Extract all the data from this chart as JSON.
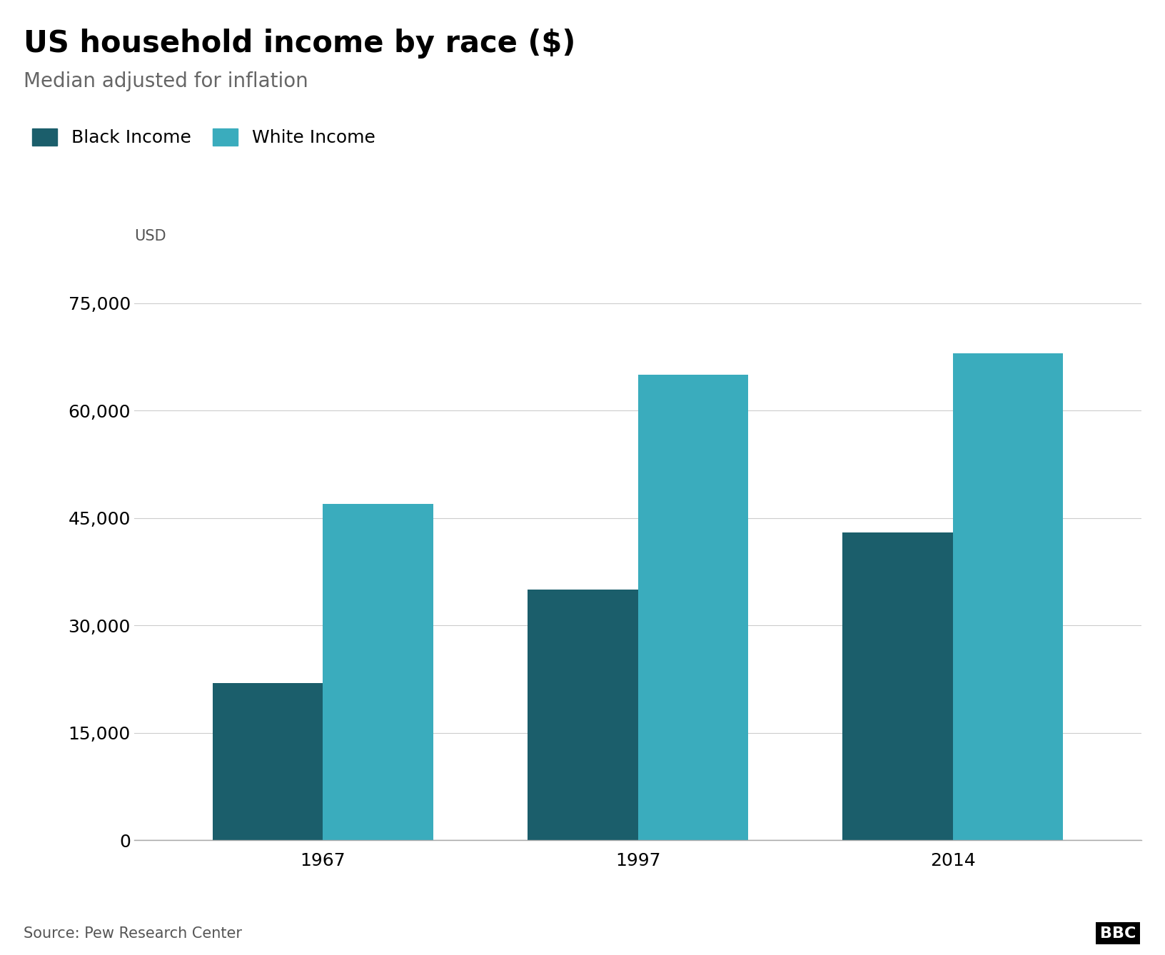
{
  "title": "US household income by race ($)",
  "subtitle": "Median adjusted for inflation",
  "ylabel": "USD",
  "source": "Source: Pew Research Center",
  "years": [
    1967,
    1997,
    2014
  ],
  "black_income": [
    22000,
    35000,
    43000
  ],
  "white_income": [
    47000,
    65000,
    68000
  ],
  "black_color": "#1b5e6b",
  "white_color": "#3aacbd",
  "background_color": "#ffffff",
  "ylim": [
    0,
    80000
  ],
  "yticks": [
    0,
    15000,
    30000,
    45000,
    60000,
    75000
  ],
  "bar_width": 0.35,
  "title_fontsize": 30,
  "subtitle_fontsize": 20,
  "legend_fontsize": 18,
  "tick_fontsize": 18,
  "source_fontsize": 15,
  "ylabel_fontsize": 15
}
